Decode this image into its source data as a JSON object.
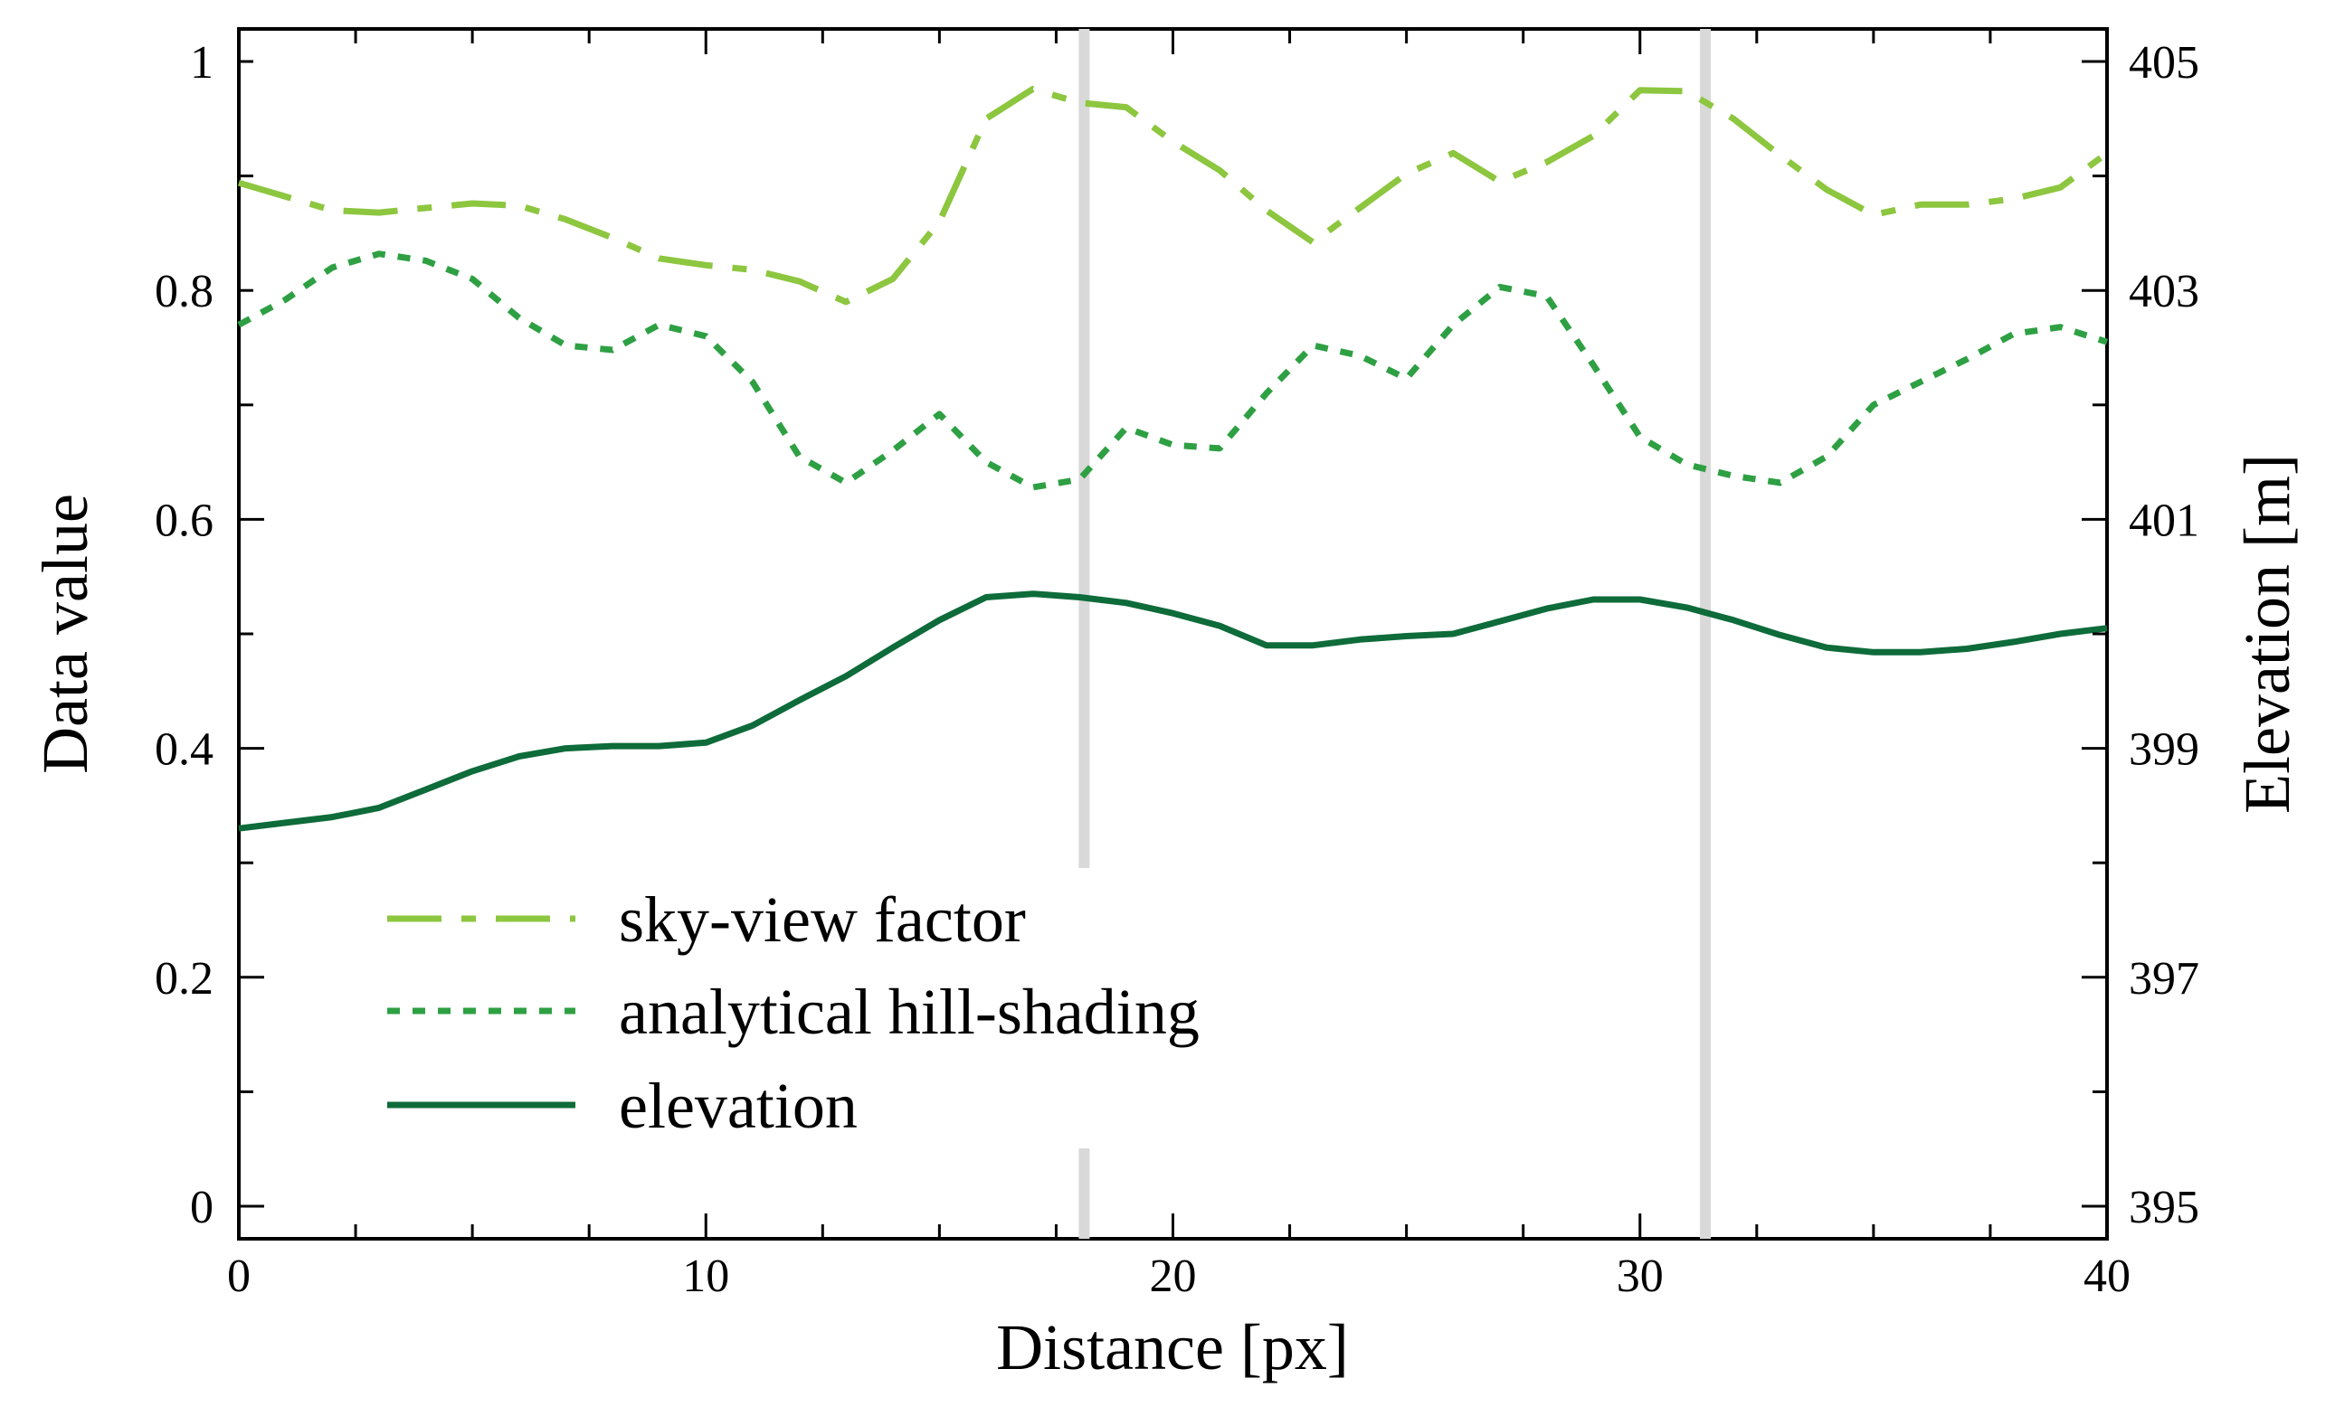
{
  "chart_data": {
    "type": "line",
    "title": "",
    "xlabel": "Distance [px]",
    "ylabel": "Data value",
    "y2label": "Elevation [m]",
    "xlim": [
      0,
      40
    ],
    "ylim": [
      0,
      1.02
    ],
    "y2lim": [
      395,
      405.2
    ],
    "xticks": [
      0,
      10,
      20,
      30,
      40
    ],
    "xtick_labels": [
      "0",
      "10",
      "20",
      "30",
      "40"
    ],
    "yticks": [
      0,
      0.2,
      0.4,
      0.6,
      0.8,
      1.0
    ],
    "ytick_labels": [
      "0",
      "0.2",
      "0.4",
      "0.6",
      "0.8",
      "1"
    ],
    "y2ticks": [
      395,
      397,
      399,
      401,
      403,
      405
    ],
    "y2tick_labels": [
      "395",
      "397",
      "399",
      "401",
      "403",
      "405"
    ],
    "grid": false,
    "legend_position": "lower-left",
    "vertical_markers": [
      18.1,
      31.4
    ],
    "x": [
      0,
      1,
      2,
      3,
      4,
      5,
      6,
      7,
      8,
      9,
      10,
      11,
      12,
      13,
      14,
      15,
      16,
      17,
      18,
      19,
      20,
      21,
      22,
      23,
      24,
      25,
      26,
      27,
      28,
      29,
      30,
      31,
      32,
      33,
      34,
      35,
      36,
      37,
      38,
      39,
      40
    ],
    "series": [
      {
        "name": "sky-view factor",
        "axis": "left",
        "style": "dashdot",
        "color": "#8dc63f",
        "values": [
          0.894,
          0.882,
          0.87,
          0.868,
          0.872,
          0.876,
          0.874,
          0.862,
          0.846,
          0.828,
          0.822,
          0.818,
          0.808,
          0.79,
          0.81,
          0.86,
          0.95,
          0.976,
          0.964,
          0.96,
          0.93,
          0.905,
          0.87,
          0.842,
          0.872,
          0.902,
          0.92,
          0.895,
          0.912,
          0.935,
          0.975,
          0.974,
          0.95,
          0.918,
          0.888,
          0.866,
          0.875,
          0.875,
          0.88,
          0.89,
          0.92
        ]
      },
      {
        "name": "analytical hill-shading",
        "axis": "left",
        "style": "dotted",
        "color": "#2ea043",
        "values": [
          0.77,
          0.792,
          0.82,
          0.832,
          0.826,
          0.81,
          0.776,
          0.752,
          0.748,
          0.77,
          0.76,
          0.72,
          0.655,
          0.632,
          0.66,
          0.692,
          0.65,
          0.628,
          0.635,
          0.68,
          0.665,
          0.662,
          0.71,
          0.752,
          0.743,
          0.723,
          0.77,
          0.803,
          0.795,
          0.735,
          0.672,
          0.648,
          0.638,
          0.632,
          0.655,
          0.7,
          0.72,
          0.74,
          0.762,
          0.768,
          0.755
        ]
      },
      {
        "name": "elevation",
        "axis": "right",
        "style": "solid",
        "color": "#0e6b3a",
        "values": [
          398.3,
          398.35,
          398.4,
          398.48,
          398.64,
          398.8,
          398.93,
          399.0,
          399.02,
          399.02,
          399.05,
          399.2,
          399.42,
          399.63,
          399.88,
          400.12,
          400.32,
          400.35,
          400.32,
          400.27,
          400.18,
          400.07,
          399.9,
          399.9,
          399.95,
          399.98,
          400.0,
          400.11,
          400.22,
          400.3,
          400.3,
          400.23,
          400.12,
          399.99,
          399.88,
          399.84,
          399.84,
          399.87,
          399.93,
          400.0,
          400.05
        ]
      }
    ]
  }
}
